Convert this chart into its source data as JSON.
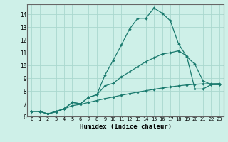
{
  "xlabel": "Humidex (Indice chaleur)",
  "bg_color": "#cef0e8",
  "grid_color": "#aad8ce",
  "line_color": "#1a7a6e",
  "spine_color": "#666666",
  "xlim": [
    -0.5,
    23.5
  ],
  "ylim": [
    6,
    14.8
  ],
  "xticks": [
    0,
    1,
    2,
    3,
    4,
    5,
    6,
    7,
    8,
    9,
    10,
    11,
    12,
    13,
    14,
    15,
    16,
    17,
    18,
    19,
    20,
    21,
    22,
    23
  ],
  "yticks": [
    6,
    7,
    8,
    9,
    10,
    11,
    12,
    13,
    14
  ],
  "line1_x": [
    0,
    1,
    2,
    3,
    4,
    5,
    6,
    7,
    8,
    9,
    10,
    11,
    12,
    13,
    14,
    15,
    16,
    17,
    18,
    19,
    20,
    21,
    22,
    23
  ],
  "line1_y": [
    6.4,
    6.4,
    6.2,
    6.4,
    6.6,
    7.1,
    7.0,
    7.5,
    7.7,
    9.25,
    10.4,
    11.6,
    12.85,
    13.7,
    13.7,
    14.5,
    14.1,
    13.5,
    11.7,
    10.7,
    10.1,
    8.8,
    8.5,
    8.5
  ],
  "line2_x": [
    0,
    1,
    2,
    3,
    4,
    5,
    6,
    7,
    8,
    9,
    10,
    11,
    12,
    13,
    14,
    15,
    16,
    17,
    18,
    19,
    20,
    21,
    22,
    23
  ],
  "line2_y": [
    6.4,
    6.4,
    6.2,
    6.4,
    6.6,
    7.1,
    7.0,
    7.5,
    7.7,
    8.4,
    8.6,
    9.1,
    9.5,
    9.9,
    10.3,
    10.6,
    10.9,
    11.0,
    11.15,
    10.75,
    8.15,
    8.15,
    8.5,
    8.5
  ],
  "line3_x": [
    0,
    1,
    2,
    3,
    4,
    5,
    6,
    7,
    8,
    9,
    10,
    11,
    12,
    13,
    14,
    15,
    16,
    17,
    18,
    19,
    20,
    21,
    22,
    23
  ],
  "line3_y": [
    6.4,
    6.4,
    6.2,
    6.35,
    6.6,
    6.85,
    6.95,
    7.1,
    7.25,
    7.4,
    7.53,
    7.66,
    7.79,
    7.91,
    8.02,
    8.13,
    8.23,
    8.32,
    8.4,
    8.47,
    8.52,
    8.55,
    8.57,
    8.58
  ]
}
